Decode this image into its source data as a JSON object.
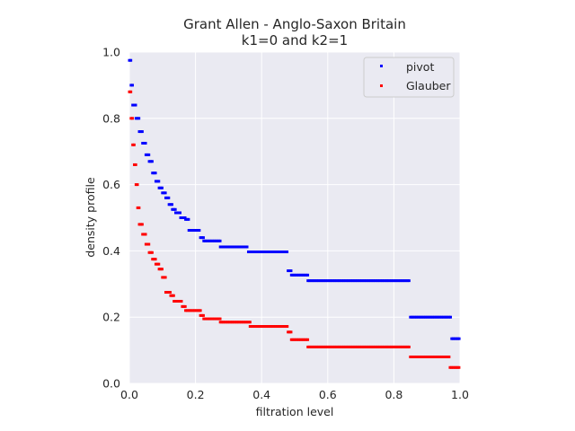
{
  "chart_data": {
    "type": "scatter",
    "title_lines": [
      "Grant Allen - Anglo-Saxon Britain",
      "k1=0 and k2=1"
    ],
    "xlabel": "filtration level",
    "ylabel": "density profile",
    "xlim": [
      0.0,
      1.0
    ],
    "ylim": [
      0.0,
      1.0
    ],
    "xticks": [
      "0.0",
      "0.2",
      "0.4",
      "0.6",
      "0.8",
      "1.0"
    ],
    "yticks": [
      "0.0",
      "0.2",
      "0.4",
      "0.6",
      "0.8",
      "1.0"
    ],
    "grid": true,
    "legend_position": "upper right",
    "background": "#eaeaf2",
    "series": [
      {
        "name": "pivot",
        "color": "#0000ff",
        "segments": [
          [
            0.0,
            0.005,
            0.975
          ],
          [
            0.005,
            0.01,
            0.9
          ],
          [
            0.01,
            0.02,
            0.84
          ],
          [
            0.02,
            0.03,
            0.8
          ],
          [
            0.03,
            0.04,
            0.76
          ],
          [
            0.04,
            0.05,
            0.725
          ],
          [
            0.05,
            0.06,
            0.69
          ],
          [
            0.06,
            0.07,
            0.67
          ],
          [
            0.07,
            0.08,
            0.635
          ],
          [
            0.08,
            0.09,
            0.61
          ],
          [
            0.09,
            0.1,
            0.59
          ],
          [
            0.1,
            0.11,
            0.575
          ],
          [
            0.11,
            0.12,
            0.56
          ],
          [
            0.12,
            0.13,
            0.54
          ],
          [
            0.13,
            0.14,
            0.525
          ],
          [
            0.14,
            0.155,
            0.515
          ],
          [
            0.155,
            0.17,
            0.5
          ],
          [
            0.17,
            0.18,
            0.495
          ],
          [
            0.18,
            0.215,
            0.462
          ],
          [
            0.215,
            0.225,
            0.44
          ],
          [
            0.225,
            0.275,
            0.43
          ],
          [
            0.275,
            0.36,
            0.412
          ],
          [
            0.36,
            0.48,
            0.397
          ],
          [
            0.48,
            0.49,
            0.34
          ],
          [
            0.49,
            0.54,
            0.327
          ],
          [
            0.54,
            0.85,
            0.31
          ],
          [
            0.85,
            0.975,
            0.2
          ],
          [
            0.975,
            1.0,
            0.135
          ]
        ]
      },
      {
        "name": "Glauber",
        "color": "#ff0000",
        "segments": [
          [
            0.0,
            0.005,
            0.88
          ],
          [
            0.005,
            0.01,
            0.8
          ],
          [
            0.01,
            0.015,
            0.72
          ],
          [
            0.015,
            0.02,
            0.66
          ],
          [
            0.02,
            0.025,
            0.6
          ],
          [
            0.025,
            0.03,
            0.53
          ],
          [
            0.03,
            0.04,
            0.48
          ],
          [
            0.04,
            0.05,
            0.45
          ],
          [
            0.05,
            0.06,
            0.42
          ],
          [
            0.06,
            0.07,
            0.395
          ],
          [
            0.07,
            0.08,
            0.375
          ],
          [
            0.08,
            0.09,
            0.36
          ],
          [
            0.09,
            0.1,
            0.345
          ],
          [
            0.1,
            0.11,
            0.32
          ],
          [
            0.11,
            0.125,
            0.275
          ],
          [
            0.125,
            0.135,
            0.265
          ],
          [
            0.135,
            0.16,
            0.248
          ],
          [
            0.16,
            0.17,
            0.232
          ],
          [
            0.17,
            0.215,
            0.22
          ],
          [
            0.215,
            0.225,
            0.205
          ],
          [
            0.225,
            0.275,
            0.195
          ],
          [
            0.275,
            0.365,
            0.185
          ],
          [
            0.365,
            0.48,
            0.172
          ],
          [
            0.48,
            0.49,
            0.155
          ],
          [
            0.49,
            0.54,
            0.132
          ],
          [
            0.54,
            0.85,
            0.11
          ],
          [
            0.85,
            0.97,
            0.08
          ],
          [
            0.97,
            1.0,
            0.048
          ]
        ]
      }
    ]
  }
}
